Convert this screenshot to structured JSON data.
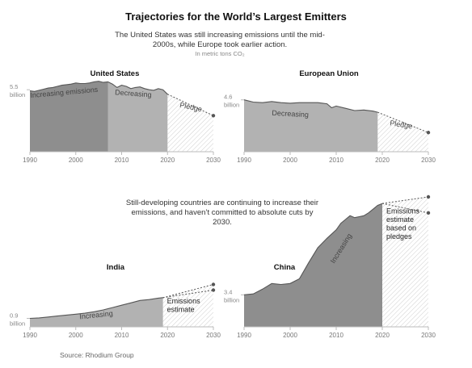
{
  "header": {
    "title": "Trajectories for the World’s Largest Emitters",
    "subtitle": "The United States was still increasing emissions until the mid-2000s, while Europe took earlier action.",
    "units": "In metric tons CO₂"
  },
  "callout": "Still-developing countries are continuing to increase their emissions, and haven’t committed to absolute cuts by 2030.",
  "source": "Source: Rhodium Group",
  "colors": {
    "dark_area": "#8e8e8e",
    "light_area": "#b2b2b2",
    "hatch": "#c9c9c9",
    "line": "#555555",
    "axis": "#bbbbbb"
  },
  "chart_data": [
    {
      "type": "area",
      "title": "United States",
      "xlim": [
        1990,
        2030
      ],
      "ylim": [
        0,
        6.3
      ],
      "x_ticks": [
        1990,
        2000,
        2010,
        2020,
        2030
      ],
      "y_label": [
        "5.5",
        "billion"
      ],
      "y_label_value": 5.5,
      "x": [
        1990,
        1991,
        1992,
        1993,
        1994,
        1995,
        1996,
        1997,
        1998,
        1999,
        2000,
        2001,
        2002,
        2003,
        2004,
        2005,
        2006,
        2007,
        2008,
        2009,
        2010,
        2011,
        2012,
        2013,
        2014,
        2015,
        2016,
        2017,
        2018,
        2019,
        2020
      ],
      "values": [
        5.4,
        5.35,
        5.45,
        5.55,
        5.65,
        5.7,
        5.8,
        5.9,
        5.95,
        6.0,
        6.1,
        6.05,
        6.05,
        6.1,
        6.2,
        6.25,
        6.15,
        6.2,
        6.0,
        5.7,
        5.9,
        5.8,
        5.6,
        5.7,
        5.75,
        5.6,
        5.5,
        5.45,
        5.6,
        5.5,
        5.1
      ],
      "segments": [
        {
          "label": "Increasing emissions",
          "from": 1990,
          "to": 2007,
          "shade": "dark"
        },
        {
          "label": "Decreasing",
          "from": 2007,
          "to": 2020,
          "shade": "light"
        }
      ],
      "projection": {
        "label": "Pledge",
        "from": 2020,
        "to": 2030,
        "lines": [
          [
            5.1,
            3.2
          ]
        ]
      }
    },
    {
      "type": "area",
      "title": "European Union",
      "xlim": [
        1990,
        2030
      ],
      "ylim": [
        0,
        6.3
      ],
      "x_ticks": [
        1990,
        2000,
        2010,
        2020,
        2030
      ],
      "y_label": [
        "4.6",
        "billion"
      ],
      "y_label_value": 4.6,
      "x": [
        1990,
        1992,
        1994,
        1996,
        1998,
        2000,
        2002,
        2004,
        2006,
        2008,
        2009,
        2010,
        2012,
        2014,
        2016,
        2018,
        2019
      ],
      "values": [
        4.6,
        4.4,
        4.35,
        4.45,
        4.35,
        4.3,
        4.35,
        4.35,
        4.35,
        4.25,
        3.9,
        4.05,
        3.85,
        3.65,
        3.7,
        3.6,
        3.5
      ],
      "segments": [
        {
          "label": "Decreasing",
          "from": 1990,
          "to": 2019,
          "shade": "light"
        }
      ],
      "projection": {
        "label": "Pledge",
        "from": 2019,
        "to": 2030,
        "lines": [
          [
            3.5,
            1.7
          ]
        ]
      }
    },
    {
      "type": "area",
      "title": "India",
      "xlim": [
        1990,
        2030
      ],
      "ylim": [
        0,
        14.4
      ],
      "x_ticks": [
        1990,
        2000,
        2010,
        2020,
        2030
      ],
      "y_label": [
        "0.9",
        "billion"
      ],
      "y_label_value": 0.9,
      "x": [
        1990,
        1992,
        1994,
        1996,
        1998,
        2000,
        2002,
        2004,
        2006,
        2008,
        2010,
        2012,
        2014,
        2016,
        2018,
        2019
      ],
      "values": [
        0.9,
        0.95,
        1.05,
        1.15,
        1.25,
        1.35,
        1.45,
        1.6,
        1.8,
        2.05,
        2.3,
        2.55,
        2.8,
        2.9,
        3.05,
        3.1
      ],
      "segments": [
        {
          "label": "Increasing",
          "from": 1990,
          "to": 2019,
          "shade": "light"
        }
      ],
      "projection": {
        "label": "Emissions estimate",
        "from": 2019,
        "to": 2030,
        "lines": [
          [
            3.1,
            4.5
          ],
          [
            3.1,
            3.9
          ]
        ]
      }
    },
    {
      "type": "area",
      "title": "China",
      "xlim": [
        1990,
        2030
      ],
      "ylim": [
        0,
        14.4
      ],
      "x_ticks": [
        1990,
        2000,
        2010,
        2020,
        2030
      ],
      "y_label": [
        "3.4",
        "billion"
      ],
      "y_label_value": 3.4,
      "x": [
        1990,
        1992,
        1994,
        1996,
        1998,
        2000,
        2002,
        2004,
        2006,
        2008,
        2010,
        2011,
        2012,
        2013,
        2014,
        2015,
        2016,
        2017,
        2018,
        2019,
        2020
      ],
      "values": [
        3.4,
        3.5,
        4.0,
        4.6,
        4.5,
        4.6,
        5.1,
        6.8,
        8.4,
        9.4,
        10.3,
        11.0,
        11.4,
        11.8,
        11.6,
        11.7,
        11.8,
        12.1,
        12.5,
        12.9,
        13.1
      ],
      "segments": [
        {
          "label": "Increasing",
          "from": 1990,
          "to": 2020,
          "shade": "dark"
        }
      ],
      "projection": {
        "label": "Emissions estimate based on pledges",
        "from": 2020,
        "to": 2030,
        "lines": [
          [
            13.1,
            13.8
          ],
          [
            13.1,
            12.1
          ]
        ]
      }
    }
  ]
}
